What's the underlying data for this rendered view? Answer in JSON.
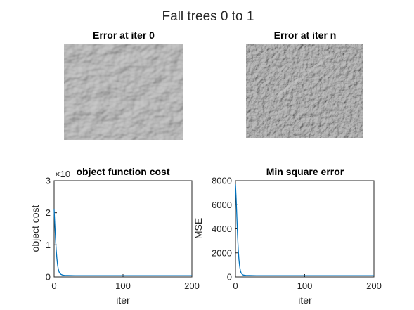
{
  "figure_title": "Fall trees 0 to 1",
  "images": [
    {
      "title": "Error at iter 0",
      "colormap": "gray",
      "texture": "smooth relief, diagonal ridges"
    },
    {
      "title": "Error at iter n",
      "colormap": "gray",
      "texture": "fine noisy grain with diagonal streak"
    }
  ],
  "chart_data": [
    {
      "type": "line",
      "title": "object function cost",
      "xlabel": "iter",
      "ylabel": "object cost",
      "xlim": [
        0,
        200
      ],
      "ylim": [
        0,
        3
      ],
      "y_exponent_label": "×10",
      "xticks": [
        "0",
        "100",
        "200"
      ],
      "yticks": [
        "0",
        "1",
        "2",
        "3"
      ],
      "grid": false,
      "series": [
        {
          "color": "#0072bd",
          "x": [
            0,
            1,
            2,
            3,
            4,
            5,
            6,
            7,
            8,
            10,
            12,
            15,
            20,
            30,
            50,
            100,
            150,
            200
          ],
          "y": [
            2.1,
            1.65,
            1.2,
            0.85,
            0.58,
            0.38,
            0.25,
            0.17,
            0.12,
            0.08,
            0.06,
            0.05,
            0.045,
            0.04,
            0.04,
            0.04,
            0.04,
            0.04
          ]
        }
      ]
    },
    {
      "type": "line",
      "title": "Min square error",
      "xlabel": "iter",
      "ylabel": "MSE",
      "xlim": [
        0,
        200
      ],
      "ylim": [
        0,
        8000
      ],
      "xticks": [
        "0",
        "100",
        "200"
      ],
      "yticks": [
        "0",
        "2000",
        "4000",
        "6000",
        "8000"
      ],
      "grid": false,
      "series": [
        {
          "color": "#0072bd",
          "x": [
            0,
            1,
            2,
            3,
            4,
            5,
            6,
            7,
            8,
            10,
            12,
            15,
            20,
            30,
            50,
            100,
            150,
            200
          ],
          "y": [
            7700,
            6500,
            5000,
            3500,
            2300,
            1450,
            900,
            560,
            350,
            200,
            150,
            130,
            120,
            110,
            110,
            110,
            110,
            110
          ]
        }
      ]
    }
  ]
}
